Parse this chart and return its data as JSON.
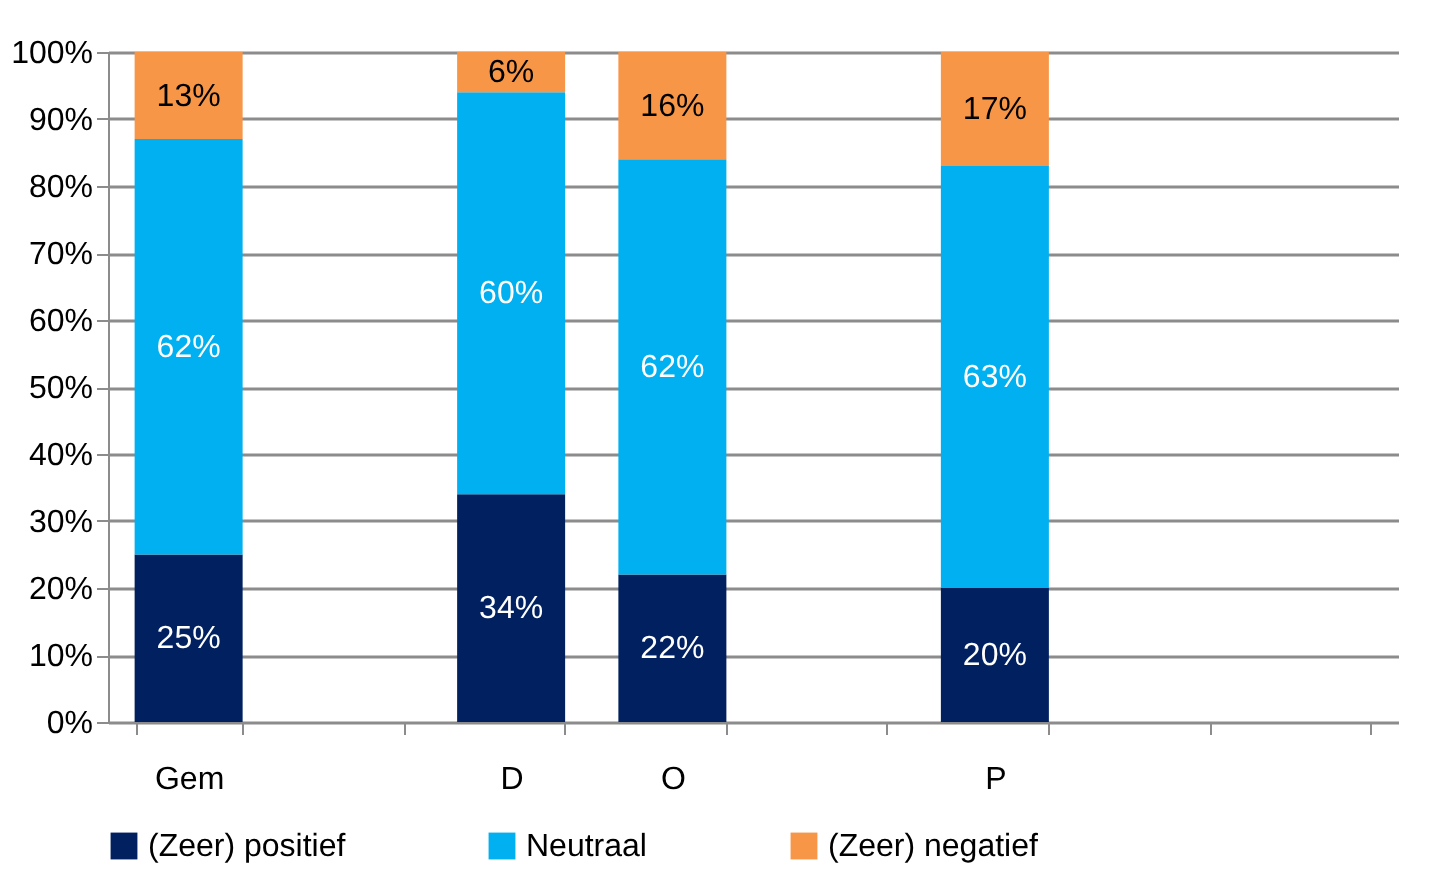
{
  "chart_data": {
    "type": "bar",
    "stacked": true,
    "categories": [
      "Gem",
      null,
      "D",
      "O",
      null,
      "P",
      null,
      null
    ],
    "series": [
      {
        "name": "(Zeer) positief",
        "color": "#002060",
        "values": [
          25,
          null,
          34,
          22,
          null,
          20,
          null,
          null
        ],
        "value_labels": [
          "25%",
          null,
          "34%",
          "22%",
          null,
          "20%",
          null,
          null
        ]
      },
      {
        "name": "Neutraal",
        "color": "#00b0f0",
        "values": [
          62,
          null,
          60,
          62,
          null,
          63,
          null,
          null
        ],
        "value_labels": [
          "62%",
          null,
          "60%",
          "62%",
          null,
          "63%",
          null,
          null
        ]
      },
      {
        "name": "(Zeer) negatief",
        "color": "#f79646",
        "values": [
          13,
          null,
          6,
          16,
          null,
          17,
          null,
          null
        ],
        "value_labels": [
          "13%",
          null,
          "6%",
          "16%",
          null,
          "17%",
          null,
          null
        ]
      }
    ],
    "ylim": [
      0,
      100
    ],
    "yticks": [
      {
        "value": 0,
        "label": "0%"
      },
      {
        "value": 10,
        "label": "10%"
      },
      {
        "value": 20,
        "label": "20%"
      },
      {
        "value": 30,
        "label": "30%"
      },
      {
        "value": 40,
        "label": "40%"
      },
      {
        "value": 50,
        "label": "50%"
      },
      {
        "value": 60,
        "label": "60%"
      },
      {
        "value": 70,
        "label": "70%"
      },
      {
        "value": 80,
        "label": "80%"
      },
      {
        "value": 90,
        "label": "90%"
      },
      {
        "value": 100,
        "label": "100%"
      }
    ],
    "grid": "y",
    "legend": "bottom"
  }
}
